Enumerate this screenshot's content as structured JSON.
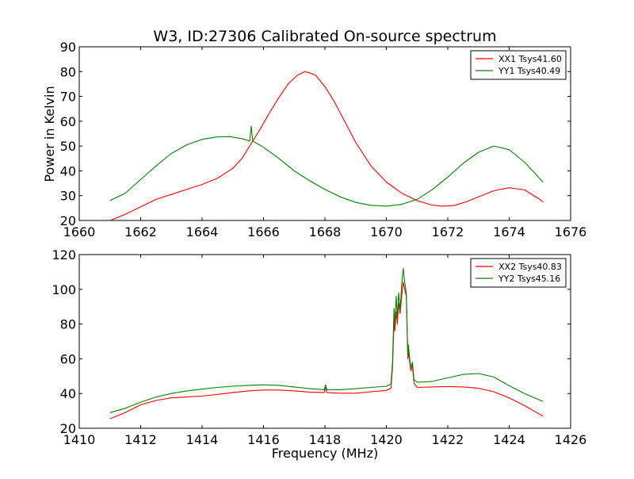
{
  "title": "W3, ID:27306 Calibrated On-source spectrum",
  "chart_data": [
    {
      "type": "line",
      "title": "W3, ID:27306 Calibrated On-source spectrum",
      "xlabel": "",
      "ylabel": "Power in Kelvin",
      "xlim": [
        1660,
        1676
      ],
      "ylim": [
        20,
        90
      ],
      "xticks": [
        1660,
        1662,
        1664,
        1666,
        1668,
        1670,
        1672,
        1674,
        1676
      ],
      "yticks": [
        20,
        30,
        40,
        50,
        60,
        70,
        80,
        90
      ],
      "grid": false,
      "legend_position": "upper right",
      "series": [
        {
          "name": "XX1 Tsys41.60",
          "color": "#ff0000",
          "x": [
            1661.0,
            1661.5,
            1662.0,
            1662.5,
            1663.0,
            1663.5,
            1664.0,
            1664.5,
            1665.0,
            1665.3,
            1665.6,
            1665.9,
            1666.2,
            1666.5,
            1666.8,
            1667.1,
            1667.35,
            1667.5,
            1667.7,
            1668.0,
            1668.3,
            1668.6,
            1669.0,
            1669.5,
            1670.0,
            1670.5,
            1671.0,
            1671.5,
            1671.8,
            1672.2,
            1672.6,
            1673.0,
            1673.5,
            1674.0,
            1674.5,
            1675.0,
            1675.1
          ],
          "y": [
            20.0,
            22.5,
            25.5,
            28.5,
            30.5,
            32.5,
            34.5,
            37.0,
            41.0,
            45.0,
            51.0,
            57.0,
            63.5,
            69.5,
            75.0,
            78.5,
            80.0,
            79.5,
            78.5,
            74.0,
            68.0,
            61.0,
            51.5,
            42.0,
            35.5,
            31.0,
            28.0,
            26.2,
            25.8,
            26.0,
            27.5,
            29.5,
            32.0,
            33.2,
            32.3,
            28.5,
            27.5
          ]
        },
        {
          "name": "YY1 Tsys40.49",
          "color": "#008000",
          "x": [
            1661.0,
            1661.5,
            1662.0,
            1662.5,
            1663.0,
            1663.5,
            1664.0,
            1664.5,
            1664.9,
            1665.3,
            1665.55,
            1665.6,
            1665.65,
            1666.0,
            1666.5,
            1667.0,
            1667.5,
            1668.0,
            1668.5,
            1669.0,
            1669.5,
            1670.0,
            1670.5,
            1671.0,
            1671.5,
            1672.0,
            1672.5,
            1673.0,
            1673.5,
            1674.0,
            1674.5,
            1675.1
          ],
          "y": [
            28.0,
            31.0,
            36.5,
            42.0,
            47.0,
            50.5,
            52.7,
            53.7,
            53.8,
            53.0,
            52.0,
            58.0,
            52.0,
            49.5,
            45.0,
            40.0,
            36.0,
            32.5,
            29.5,
            27.3,
            26.1,
            25.8,
            26.5,
            28.5,
            32.5,
            37.5,
            43.0,
            47.5,
            50.0,
            48.5,
            43.5,
            35.5
          ]
        }
      ]
    },
    {
      "type": "line",
      "title": "",
      "xlabel": "Frequency (MHz)",
      "ylabel": "",
      "xlim": [
        1410,
        1426
      ],
      "ylim": [
        20,
        120
      ],
      "xticks": [
        1410,
        1412,
        1414,
        1416,
        1418,
        1420,
        1422,
        1424,
        1426
      ],
      "yticks": [
        20,
        40,
        60,
        80,
        100,
        120
      ],
      "grid": false,
      "legend_position": "upper right",
      "series": [
        {
          "name": "XX2 Tsys40.83",
          "color": "#ff0000",
          "x": [
            1411.0,
            1411.5,
            1412.0,
            1412.5,
            1413.0,
            1413.5,
            1414.0,
            1414.5,
            1415.0,
            1415.5,
            1416.0,
            1416.5,
            1417.0,
            1417.5,
            1417.98,
            1418.02,
            1418.06,
            1418.5,
            1419.0,
            1419.5,
            1420.0,
            1420.15,
            1420.2,
            1420.25,
            1420.28,
            1420.32,
            1420.36,
            1420.4,
            1420.45,
            1420.5,
            1420.55,
            1420.6,
            1420.65,
            1420.7,
            1420.72,
            1420.76,
            1420.8,
            1420.85,
            1420.9,
            1421.0,
            1421.5,
            1422.0,
            1422.5,
            1423.0,
            1423.5,
            1424.0,
            1424.5,
            1425.1
          ],
          "y": [
            25.5,
            29.0,
            33.5,
            36.0,
            37.5,
            38.0,
            38.5,
            39.5,
            40.5,
            41.5,
            42.0,
            42.0,
            41.5,
            40.8,
            40.5,
            44.0,
            40.5,
            40.2,
            40.2,
            41.0,
            41.8,
            43.0,
            55.0,
            82.0,
            76.0,
            87.0,
            80.0,
            92.0,
            86.0,
            96.0,
            104.0,
            100.0,
            96.0,
            60.0,
            64.0,
            58.0,
            53.0,
            56.0,
            46.0,
            43.5,
            43.8,
            44.0,
            43.8,
            43.0,
            41.0,
            37.5,
            33.0,
            27.0
          ]
        },
        {
          "name": "YY2 Tsys45.16",
          "color": "#008000",
          "x": [
            1411.0,
            1411.5,
            1412.0,
            1412.5,
            1413.0,
            1413.5,
            1414.0,
            1414.5,
            1415.0,
            1415.5,
            1416.0,
            1416.5,
            1417.0,
            1417.5,
            1417.98,
            1418.02,
            1418.06,
            1418.5,
            1419.0,
            1419.5,
            1420.0,
            1420.15,
            1420.2,
            1420.25,
            1420.28,
            1420.32,
            1420.36,
            1420.4,
            1420.45,
            1420.5,
            1420.55,
            1420.6,
            1420.65,
            1420.7,
            1420.72,
            1420.76,
            1420.8,
            1420.85,
            1420.9,
            1421.0,
            1421.5,
            1422.0,
            1422.5,
            1423.0,
            1423.5,
            1424.0,
            1424.5,
            1425.1
          ],
          "y": [
            29.0,
            31.5,
            35.0,
            38.0,
            40.0,
            41.5,
            42.5,
            43.5,
            44.2,
            44.7,
            45.0,
            44.7,
            43.8,
            42.8,
            42.2,
            45.0,
            42.2,
            42.2,
            42.8,
            43.5,
            44.2,
            45.5,
            58.0,
            89.0,
            80.0,
            96.0,
            84.0,
            98.0,
            88.0,
            103.0,
            112.0,
            104.0,
            98.0,
            62.0,
            68.0,
            60.0,
            55.0,
            58.0,
            48.0,
            46.5,
            47.0,
            49.0,
            51.0,
            51.5,
            49.5,
            44.5,
            40.0,
            35.5
          ]
        }
      ]
    }
  ]
}
